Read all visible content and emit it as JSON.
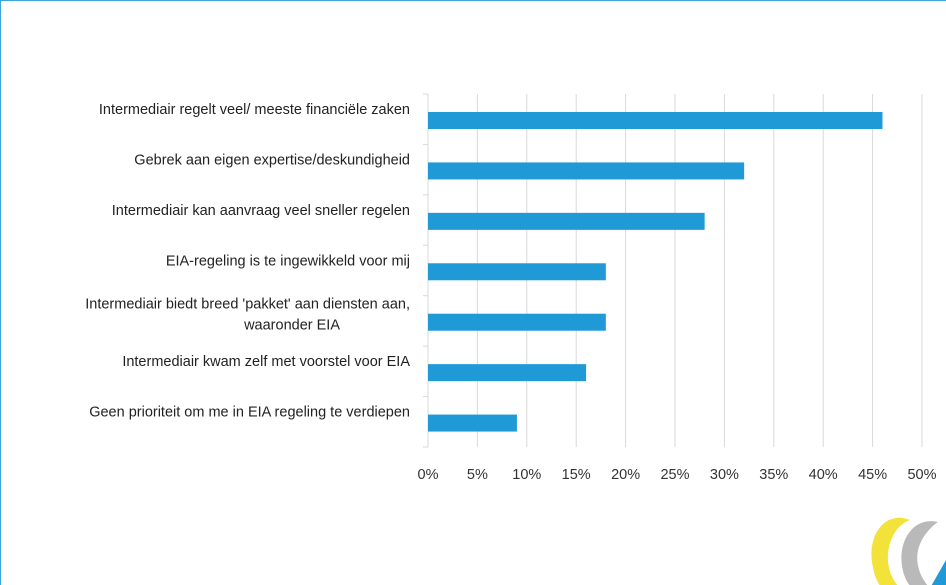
{
  "chart_data": {
    "type": "bar",
    "orientation": "horizontal",
    "title": "",
    "xlabel": "",
    "ylabel": "",
    "categories": [
      "Intermediair regelt veel/ meeste financiële zaken",
      "Gebrek aan eigen expertise/deskundigheid",
      "Intermediair kan aanvraag veel sneller regelen",
      "EIA-regeling is te ingewikkeld voor mij",
      "Intermediair biedt breed 'pakket' aan diensten aan, waaronder EIA",
      "Intermediair kwam zelf met voorstel voor EIA",
      "Geen prioriteit om me in EIA regeling te verdiepen"
    ],
    "category_lines": [
      [
        "Intermediair regelt veel/ meeste financiële zaken"
      ],
      [
        "Gebrek aan eigen expertise/deskundigheid"
      ],
      [
        "Intermediair kan aanvraag veel sneller regelen"
      ],
      [
        "EIA-regeling is te ingewikkeld voor mij"
      ],
      [
        "Intermediair biedt breed 'pakket' aan diensten aan,",
        "waaronder EIA"
      ],
      [
        "Intermediair kwam zelf met voorstel voor EIA"
      ],
      [
        "Geen prioriteit om me in EIA regeling te verdiepen"
      ]
    ],
    "values": [
      46,
      32,
      28,
      18,
      18,
      16,
      9
    ],
    "xlim": [
      0,
      50
    ],
    "x_ticks": [
      "0%",
      "5%",
      "10%",
      "15%",
      "20%",
      "25%",
      "30%",
      "35%",
      "40%",
      "45%",
      "50%"
    ],
    "x_tick_values": [
      0,
      5,
      10,
      15,
      20,
      25,
      30,
      35,
      40,
      45,
      50
    ],
    "grid": true,
    "legend": "none"
  },
  "colors": {
    "bar": "#1f9ad6",
    "gridline": "#d9d9d9",
    "frame": "#3aa6d8",
    "logo_yellow": "#f2e23a",
    "logo_gray": "#b9b9b9",
    "logo_blue": "#1f9ad6"
  },
  "logo": {
    "icon": "swirl-logo-icon"
  }
}
